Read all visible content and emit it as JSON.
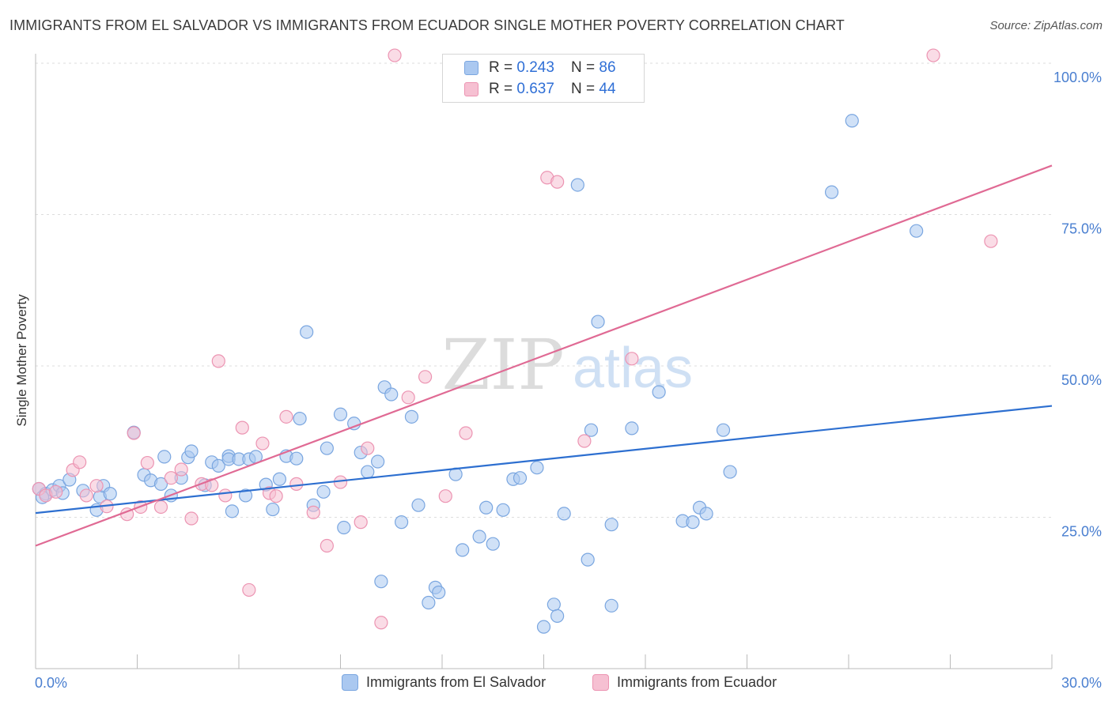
{
  "title": "IMMIGRANTS FROM EL SALVADOR VS IMMIGRANTS FROM ECUADOR SINGLE MOTHER POVERTY CORRELATION CHART",
  "source": "Source: ZipAtlas.com",
  "watermark": {
    "zip": "ZIP",
    "atlas": "atlas"
  },
  "colors": {
    "blue_fill": "#aac8f0",
    "blue_stroke": "#7aa6e0",
    "blue_line": "#2d6fd0",
    "pink_fill": "#f6c0d2",
    "pink_stroke": "#ec94b2",
    "pink_line": "#e06a94",
    "tick_text": "#4a7fd0",
    "grid": "#dddddd"
  },
  "legend": {
    "series": [
      {
        "r_label": "R = ",
        "r_value": "0.243",
        "n_label": "N = ",
        "n_value": "86",
        "name": "Immigrants from El Salvador"
      },
      {
        "r_label": "R = ",
        "r_value": "0.637",
        "n_label": "N = ",
        "n_value": "44",
        "name": "Immigrants from Ecuador"
      }
    ]
  },
  "chart_data": {
    "type": "scatter",
    "title": "IMMIGRANTS FROM EL SALVADOR VS IMMIGRANTS FROM ECUADOR SINGLE MOTHER POVERTY CORRELATION CHART",
    "xlabel": "",
    "ylabel": "Single Mother Poverty",
    "xlim": [
      0,
      30
    ],
    "ylim": [
      0,
      100
    ],
    "x_ticks_labels": [
      "0.0%",
      "30.0%"
    ],
    "y_tick_values": [
      25,
      50,
      75,
      100
    ],
    "y_tick_labels": [
      "25.0%",
      "50.0%",
      "75.0%",
      "100.0%"
    ],
    "grid": true,
    "legend_position": "top-center",
    "series": [
      {
        "name": "Immigrants from El Salvador",
        "r": 0.243,
        "n": 86,
        "trend": {
          "x0": 0,
          "y0": 25.7,
          "x1": 30,
          "y1": 43.4
        },
        "points": [
          [
            0.1,
            29.7
          ],
          [
            0.3,
            28.9
          ],
          [
            0.5,
            29.5
          ],
          [
            0.7,
            30.2
          ],
          [
            0.8,
            29.0
          ],
          [
            1.4,
            29.4
          ],
          [
            1.8,
            26.2
          ],
          [
            1.9,
            28.4
          ],
          [
            2.0,
            30.2
          ],
          [
            2.2,
            28.9
          ],
          [
            2.9,
            39.0
          ],
          [
            3.2,
            32.0
          ],
          [
            3.4,
            31.1
          ],
          [
            3.7,
            30.5
          ],
          [
            3.8,
            35.0
          ],
          [
            4.0,
            28.6
          ],
          [
            4.3,
            31.5
          ],
          [
            4.5,
            34.9
          ],
          [
            4.6,
            35.9
          ],
          [
            5.0,
            30.3
          ],
          [
            5.2,
            34.1
          ],
          [
            5.4,
            33.5
          ],
          [
            5.7,
            35.1
          ],
          [
            5.7,
            34.6
          ],
          [
            5.8,
            26.0
          ],
          [
            6.0,
            34.6
          ],
          [
            6.2,
            28.6
          ],
          [
            6.3,
            34.6
          ],
          [
            6.5,
            35.0
          ],
          [
            6.8,
            30.4
          ],
          [
            7.0,
            26.3
          ],
          [
            7.2,
            31.3
          ],
          [
            7.4,
            35.1
          ],
          [
            7.7,
            34.7
          ],
          [
            7.8,
            41.3
          ],
          [
            8.0,
            55.6
          ],
          [
            8.2,
            27.0
          ],
          [
            8.5,
            29.2
          ],
          [
            8.6,
            36.4
          ],
          [
            9.0,
            42.0
          ],
          [
            9.1,
            23.3
          ],
          [
            9.4,
            40.5
          ],
          [
            9.6,
            35.7
          ],
          [
            9.8,
            32.5
          ],
          [
            10.1,
            34.2
          ],
          [
            10.2,
            14.4
          ],
          [
            10.3,
            46.5
          ],
          [
            10.5,
            45.3
          ],
          [
            10.8,
            24.2
          ],
          [
            11.1,
            41.6
          ],
          [
            11.3,
            27.0
          ],
          [
            11.6,
            10.9
          ],
          [
            11.8,
            13.4
          ],
          [
            11.9,
            12.6
          ],
          [
            12.4,
            32.1
          ],
          [
            12.6,
            19.6
          ],
          [
            13.1,
            21.8
          ],
          [
            13.3,
            26.6
          ],
          [
            13.5,
            20.6
          ],
          [
            13.8,
            26.2
          ],
          [
            14.1,
            31.3
          ],
          [
            14.3,
            31.5
          ],
          [
            14.8,
            33.2
          ],
          [
            15.0,
            6.9
          ],
          [
            15.3,
            10.6
          ],
          [
            15.4,
            8.7
          ],
          [
            15.6,
            25.6
          ],
          [
            16.0,
            79.9
          ],
          [
            16.3,
            18.0
          ],
          [
            16.4,
            39.4
          ],
          [
            16.6,
            57.3
          ],
          [
            17.0,
            23.8
          ],
          [
            17.0,
            10.4
          ],
          [
            17.6,
            39.7
          ],
          [
            18.4,
            45.7
          ],
          [
            19.1,
            24.4
          ],
          [
            19.4,
            24.2
          ],
          [
            19.6,
            26.6
          ],
          [
            19.8,
            25.6
          ],
          [
            20.3,
            39.4
          ],
          [
            20.5,
            32.5
          ],
          [
            23.5,
            78.7
          ],
          [
            24.1,
            90.5
          ],
          [
            26.0,
            72.3
          ],
          [
            0.2,
            28.3
          ],
          [
            1.0,
            31.2
          ]
        ]
      },
      {
        "name": "Immigrants from Ecuador",
        "r": 0.637,
        "n": 44,
        "trend": {
          "x0": 0,
          "y0": 20.3,
          "x1": 30,
          "y1": 83.1
        },
        "points": [
          [
            0.1,
            29.7
          ],
          [
            0.3,
            28.6
          ],
          [
            0.6,
            29.2
          ],
          [
            1.1,
            32.8
          ],
          [
            1.3,
            34.1
          ],
          [
            1.5,
            28.6
          ],
          [
            1.8,
            30.2
          ],
          [
            2.1,
            26.8
          ],
          [
            2.7,
            25.5
          ],
          [
            2.9,
            38.9
          ],
          [
            3.1,
            26.7
          ],
          [
            3.3,
            34.0
          ],
          [
            3.7,
            26.7
          ],
          [
            4.0,
            31.5
          ],
          [
            4.3,
            32.9
          ],
          [
            4.6,
            24.8
          ],
          [
            4.9,
            30.5
          ],
          [
            5.2,
            30.3
          ],
          [
            5.4,
            50.8
          ],
          [
            5.6,
            28.6
          ],
          [
            6.1,
            39.8
          ],
          [
            6.3,
            13.0
          ],
          [
            6.7,
            37.2
          ],
          [
            6.9,
            29.0
          ],
          [
            7.1,
            28.5
          ],
          [
            7.4,
            41.6
          ],
          [
            7.7,
            30.5
          ],
          [
            8.2,
            25.8
          ],
          [
            8.6,
            20.3
          ],
          [
            9.0,
            30.8
          ],
          [
            9.6,
            24.2
          ],
          [
            9.8,
            36.4
          ],
          [
            10.2,
            7.6
          ],
          [
            10.6,
            101.3
          ],
          [
            11.0,
            44.8
          ],
          [
            11.5,
            48.2
          ],
          [
            12.1,
            28.5
          ],
          [
            12.7,
            38.9
          ],
          [
            15.1,
            81.1
          ],
          [
            15.4,
            80.4
          ],
          [
            16.2,
            37.6
          ],
          [
            17.6,
            51.2
          ],
          [
            26.5,
            101.3
          ],
          [
            28.2,
            70.6
          ]
        ]
      }
    ]
  }
}
